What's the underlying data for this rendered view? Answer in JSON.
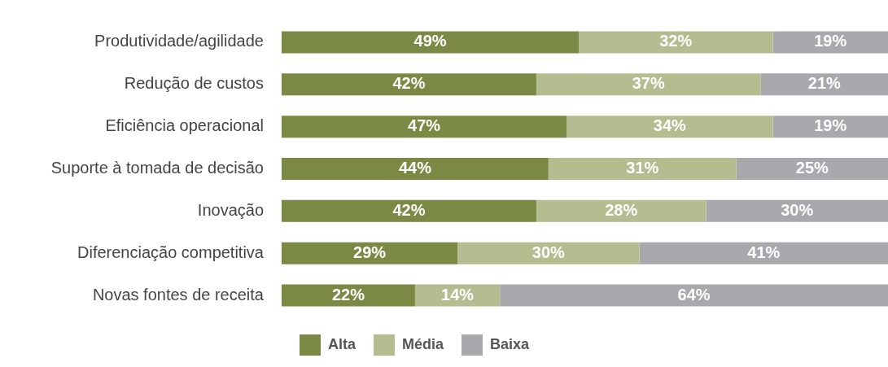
{
  "chart_data": {
    "type": "bar",
    "orientation": "horizontal",
    "stacked": true,
    "legend": "bottom",
    "tick_labels": "y",
    "grid": false,
    "categories": [
      "Produtividade/agilidade",
      "Redução de custos",
      "Eficiência operacional",
      "Suporte à tomada de decisão",
      "Inovação",
      "Diferenciação competitiva",
      "Novas fontes de receita"
    ],
    "series": [
      {
        "name": "Alta",
        "color": "#7a8944",
        "values": [
          49,
          42,
          47,
          44,
          42,
          29,
          22
        ],
        "value_labels": [
          "49%",
          "42%",
          "47%",
          "44%",
          "42%",
          "29%",
          "22%"
        ]
      },
      {
        "name": "Média",
        "color": "#b4bc90",
        "values": [
          32,
          37,
          34,
          31,
          28,
          30,
          14
        ],
        "value_labels": [
          "32%",
          "37%",
          "34%",
          "31%",
          "28%",
          "30%",
          "14%"
        ]
      },
      {
        "name": "Baixa",
        "color": "#a9a9ad",
        "values": [
          19,
          21,
          19,
          25,
          30,
          41,
          64
        ],
        "value_labels": [
          "19%",
          "21%",
          "19%",
          "25%",
          "30%",
          "41%",
          "64%"
        ]
      }
    ]
  }
}
